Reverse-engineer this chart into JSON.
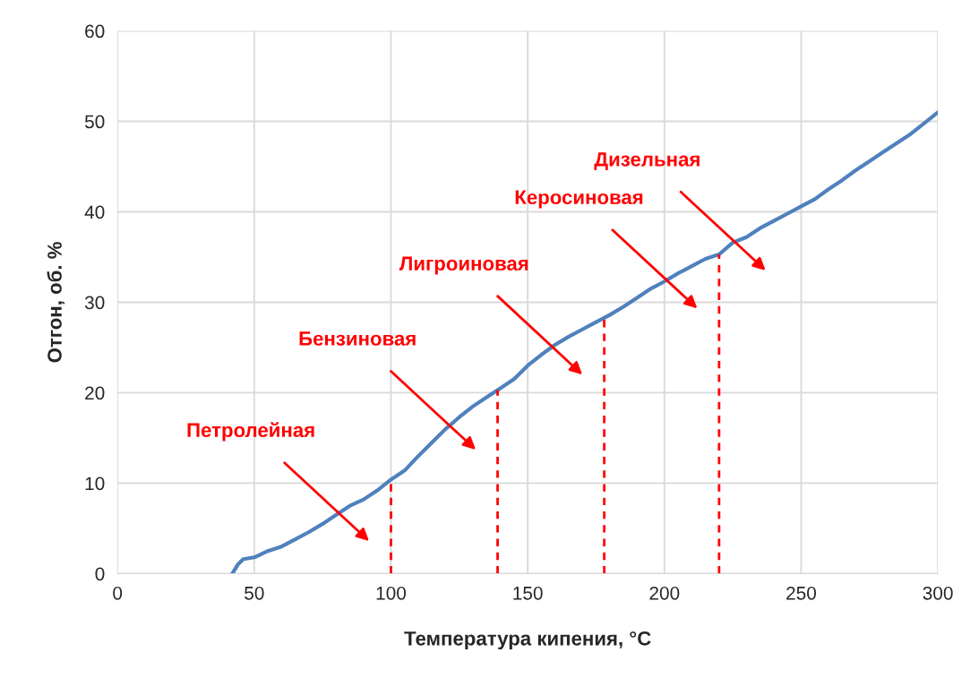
{
  "chart_data": {
    "type": "line",
    "xlabel": "Температура кипения, °C",
    "ylabel": "Отгон, об. %",
    "x": [
      42,
      44,
      46,
      50,
      55,
      60,
      65,
      70,
      75,
      80,
      85,
      90,
      95,
      100,
      105,
      110,
      115,
      120,
      125,
      130,
      135,
      140,
      145,
      150,
      155,
      160,
      165,
      170,
      175,
      180,
      185,
      190,
      195,
      200,
      205,
      210,
      215,
      220,
      225,
      230,
      235,
      240,
      245,
      250,
      255,
      260,
      265,
      270,
      275,
      280,
      285,
      290,
      295,
      300
    ],
    "series": [
      {
        "color": "#4f81bd",
        "values": [
          0,
          1,
          1.6,
          1.8,
          2.5,
          3,
          3.8,
          4.6,
          5.5,
          6.5,
          7.5,
          8.2,
          9.2,
          10.4,
          11.4,
          13,
          14.5,
          16,
          17.3,
          18.5,
          19.5,
          20.5,
          21.5,
          23,
          24.2,
          25.3,
          26.2,
          27,
          27.8,
          28.6,
          29.5,
          30.5,
          31.5,
          32.3,
          33.2,
          34,
          34.8,
          35.3,
          36.6,
          37.2,
          38.2,
          39,
          39.8,
          40.6,
          41.4,
          42.5,
          43.5,
          44.6,
          45.6,
          46.6,
          47.6,
          48.6,
          49.8,
          51
        ]
      }
    ],
    "xlim": [
      0,
      300
    ],
    "xticks": [
      0,
      50,
      100,
      150,
      200,
      250,
      300
    ],
    "ylim": [
      0,
      60
    ],
    "yticks": [
      0,
      10,
      20,
      30,
      40,
      50,
      60
    ],
    "grid": true,
    "marker": "none",
    "line_style": "solid",
    "ref_lines": [
      {
        "axis": "x",
        "value": 100,
        "color": "#ff0000",
        "line_style": "dashed"
      },
      {
        "axis": "x",
        "value": 139,
        "color": "#ff0000",
        "line_style": "dashed"
      },
      {
        "axis": "x",
        "value": 178,
        "color": "#ff0000",
        "line_style": "dashed"
      },
      {
        "axis": "x",
        "value": 220,
        "color": "#ff0000",
        "line_style": "dashed"
      }
    ],
    "annotations": [
      "Петролейная",
      "Бензиновая",
      "Лигроиновая",
      "Керосиновая",
      "Дизельная"
    ]
  }
}
